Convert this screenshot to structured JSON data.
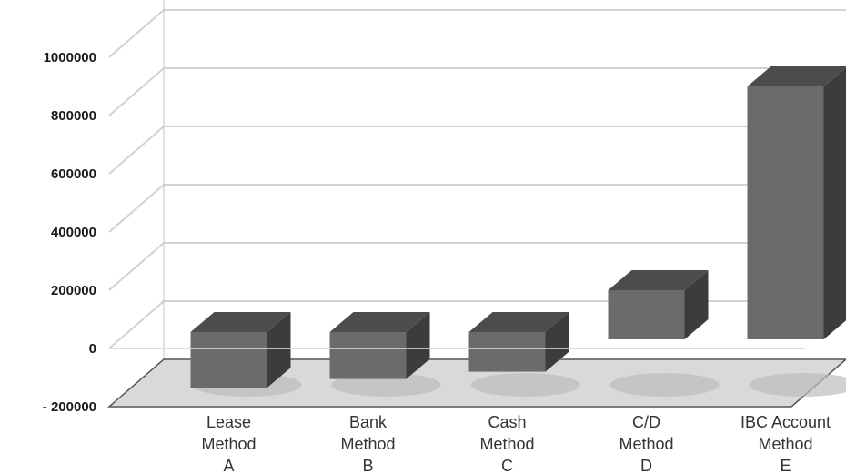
{
  "chart_data": {
    "type": "bar",
    "style": "3d-columns",
    "title": "",
    "xlabel": "",
    "ylabel": "",
    "ylim": [
      -200000,
      1000000
    ],
    "yticks": [
      "1000000",
      "800000",
      "600000",
      "400000",
      "200000",
      "0",
      "- 200000"
    ],
    "tick_values": [
      1000000,
      800000,
      600000,
      400000,
      200000,
      0,
      -200000
    ],
    "categories": [
      [
        "Lease",
        "Method",
        "A"
      ],
      [
        "Bank",
        "Method",
        "B"
      ],
      [
        "Cash",
        "Method",
        "C"
      ],
      [
        "C/D",
        "Method",
        "D"
      ],
      [
        "IBC Account",
        "Method",
        "E"
      ]
    ],
    "values": [
      -135000,
      -105000,
      -80000,
      200000,
      900000
    ],
    "grid": true,
    "legend": "none",
    "colors": {
      "bar_front": "#6a6b6c",
      "bar_top": "#4b4c4d",
      "bar_side": "#3b3c3d",
      "gridline": "#d2d2d2",
      "floor": "#d8d9d9",
      "floor_edge": "#555555",
      "shadow": "#bcbdbd",
      "wall_edge": "#c4c4c4",
      "tick_text": "#1a1a1a",
      "category_text": "#333333"
    }
  }
}
